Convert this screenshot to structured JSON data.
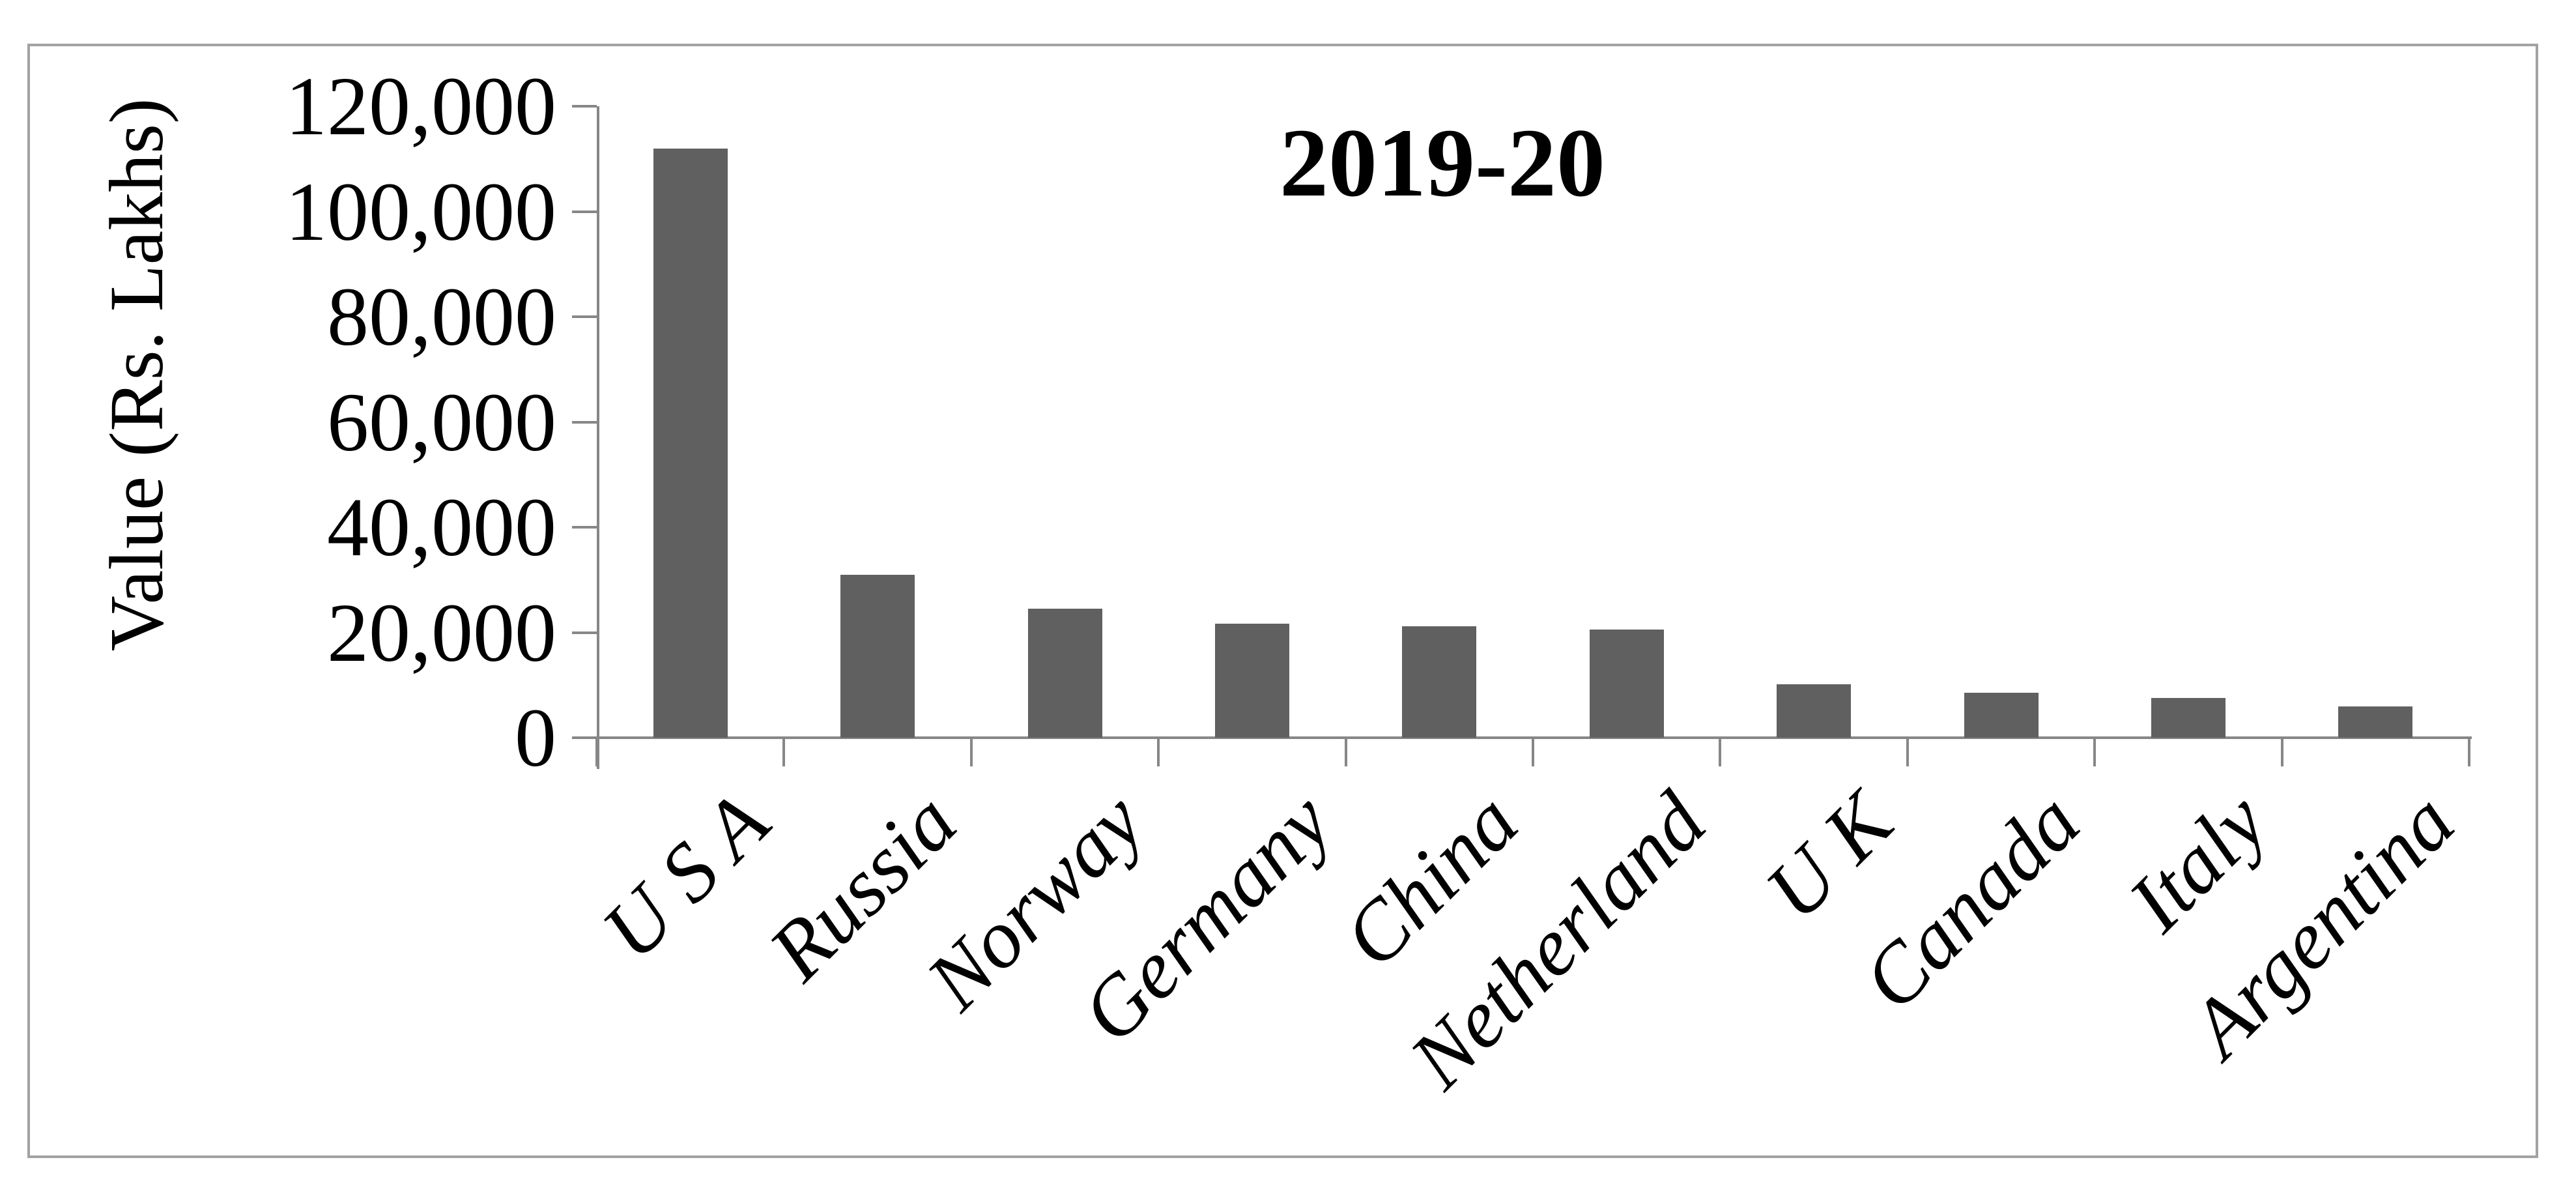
{
  "figure": {
    "background": "#ffffff",
    "border_color": "#a2a2a2"
  },
  "chart_data": {
    "type": "bar",
    "title": "2019-20",
    "xlabel": "",
    "ylabel": "Value (Rs. Lakhs)",
    "categories": [
      "U S A",
      "Russia",
      "Norway",
      "Germany",
      "China",
      "Netherland",
      "U K",
      "Canada",
      "Italy",
      "Argentina"
    ],
    "values": [
      112000,
      31000,
      24500,
      21700,
      21200,
      20600,
      10200,
      8600,
      7500,
      5900
    ],
    "ylim": [
      0,
      120000
    ],
    "ytick_interval": 20000,
    "ytick_labels": [
      "0",
      "20,000",
      "40,000",
      "60,000",
      "80,000",
      "100,000",
      "120,000"
    ],
    "grid": false,
    "legend": false,
    "bar_color": "#606060",
    "axis_color": "#878787",
    "x_label_rotation_deg": -45
  }
}
